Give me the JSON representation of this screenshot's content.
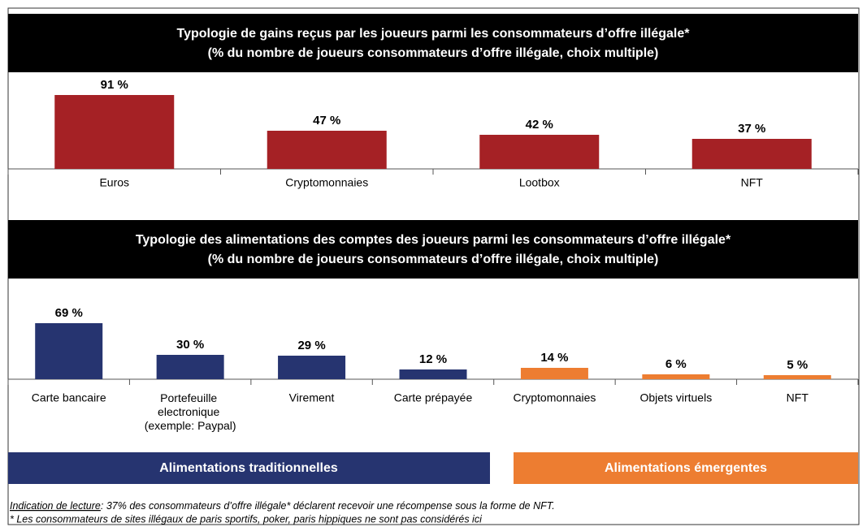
{
  "chart_data": [
    {
      "type": "bar",
      "title": "Typologie de gains reçus par les joueurs parmi les consommateurs d’offre illégale*",
      "subtitle": "(% du nombre de joueurs consommateurs d’offre illégale, choix multiple)",
      "categories": [
        "Euros",
        "Cryptomonnaies",
        "Lootbox",
        "NFT"
      ],
      "values": [
        91,
        47,
        42,
        37
      ],
      "value_labels": [
        "91 %",
        "47 %",
        "42 %",
        "37 %"
      ],
      "color": "#a52125"
    },
    {
      "type": "bar",
      "title": "Typologie des alimentations des comptes des joueurs parmi les consommateurs d’offre illégale*",
      "subtitle": "(% du nombre de joueurs consommateurs d’offre illégale, choix multiple)",
      "categories": [
        "Carte bancaire",
        "Portefeuille electronique (exemple: Paypal)",
        "Virement",
        "Carte prépayée",
        "Cryptomonnaies",
        "Objets  virtuels",
        "NFT"
      ],
      "values": [
        69,
        30,
        29,
        12,
        14,
        6,
        5
      ],
      "value_labels": [
        "69 %",
        "30 %",
        "29 %",
        "12 %",
        "14 %",
        "6 %",
        "5 %"
      ],
      "colors": [
        "#263470",
        "#263470",
        "#263470",
        "#263470",
        "#ed7d31",
        "#ed7d31",
        "#ed7d31"
      ],
      "groups": [
        {
          "label": "Alimentations traditionnelles",
          "color": "#263470"
        },
        {
          "label": "Alimentations émergentes",
          "color": "#ed7d31"
        }
      ]
    }
  ],
  "reading_note_label": "Indication de lecture",
  "reading_note": ": 37% des consommateurs d’offre illégale* déclarent recevoir une récompense sous la forme de NFT.",
  "footnote": "* Les consommateurs de sites illégaux de paris sportifs, poker, paris hippiques ne sont pas considérés ici"
}
